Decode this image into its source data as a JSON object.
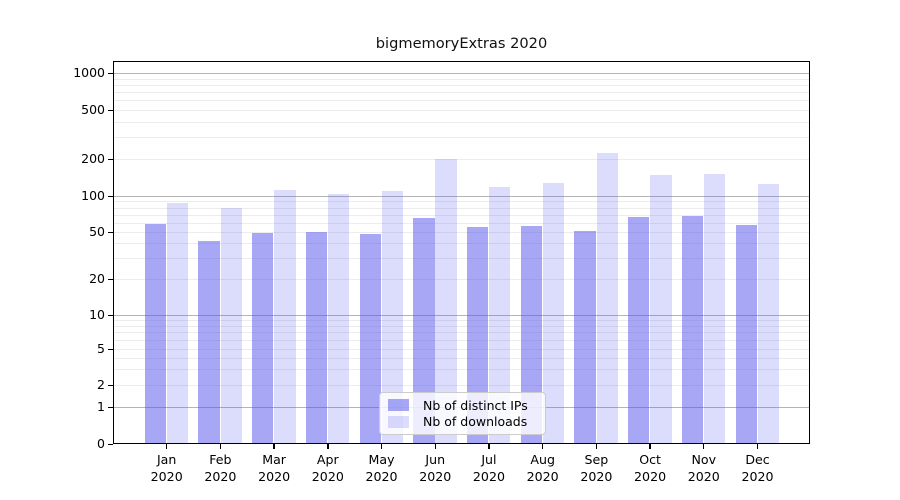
{
  "chart_data": {
    "type": "bar",
    "title": "bigmemoryExtras 2020",
    "categories": [
      "Jan",
      "Feb",
      "Mar",
      "Apr",
      "May",
      "Jun",
      "Jul",
      "Aug",
      "Sep",
      "Oct",
      "Nov",
      "Dec"
    ],
    "x_sub_label": "2020",
    "series": [
      {
        "name": "Nb of distinct IPs",
        "color": "rgba(80,80,238,0.5)",
        "values": [
          58,
          42,
          49,
          50,
          48,
          66,
          55,
          56,
          51,
          67,
          68,
          57
        ]
      },
      {
        "name": "Nb of downloads",
        "color": "rgba(80,80,238,0.2)",
        "values": [
          88,
          80,
          111,
          103,
          109,
          201,
          118,
          128,
          224,
          147,
          152,
          125
        ]
      }
    ],
    "ylabel": "",
    "xlabel": "",
    "yscale": "symlog",
    "ytick_values": [
      0,
      1,
      2,
      5,
      10,
      20,
      50,
      100,
      200,
      500,
      1000
    ],
    "major_grid_values": [
      1,
      10,
      100,
      1000
    ],
    "minor_grid_values": [
      2,
      3,
      4,
      5,
      6,
      7,
      8,
      9,
      20,
      30,
      40,
      50,
      60,
      70,
      80,
      90,
      200,
      300,
      400,
      500,
      600,
      700,
      800,
      900
    ],
    "ylim": [
      0,
      1200
    ],
    "grid": "horizontal major+minor",
    "legend_position": "lower center"
  }
}
